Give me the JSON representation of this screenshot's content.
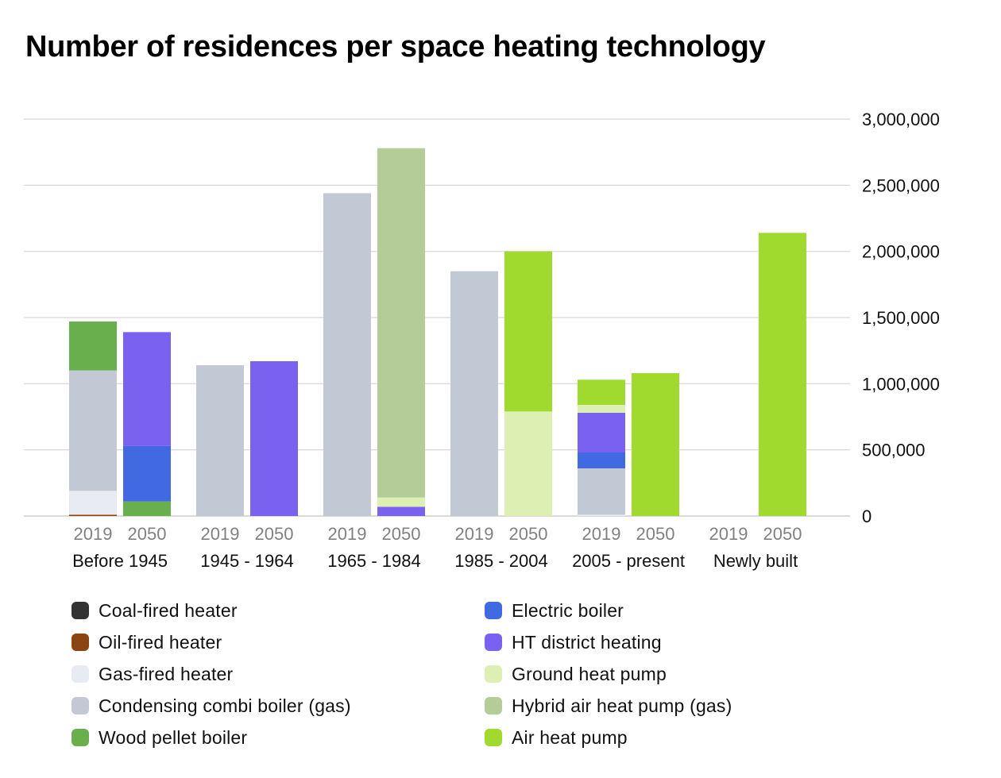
{
  "title": "Number of residences per space heating technology",
  "chart_data": {
    "type": "bar",
    "stacked": true,
    "title": "Number of residences per space heating technology",
    "groups": [
      "Before 1945",
      "1945 - 1964",
      "1965 - 1984",
      "1985 - 2004",
      "2005 - present",
      "Newly built"
    ],
    "years": [
      "2019",
      "2050"
    ],
    "ylim": [
      0,
      3000000
    ],
    "y_ticks": [
      0,
      500000,
      1000000,
      1500000,
      2000000,
      2500000,
      3000000
    ],
    "y_tick_labels": [
      "0",
      "500,000",
      "1,000,000",
      "1,500,000",
      "2,000,000",
      "2,500,000",
      "3,000,000"
    ],
    "y_axis_position": "right",
    "grid": true,
    "legend_position": "bottom",
    "series": [
      {
        "name": "Coal-fired heater",
        "color": "#333333",
        "values": [
          [
            0,
            0
          ],
          [
            0,
            0
          ],
          [
            0,
            0
          ],
          [
            0,
            0
          ],
          [
            0,
            0
          ],
          [
            0,
            0
          ]
        ]
      },
      {
        "name": "Oil-fired heater",
        "color": "#8B4513",
        "values": [
          [
            10000,
            0
          ],
          [
            0,
            0
          ],
          [
            0,
            0
          ],
          [
            0,
            0
          ],
          [
            0,
            0
          ],
          [
            0,
            0
          ]
        ]
      },
      {
        "name": "Gas-fired heater",
        "color": "#E8EBF1",
        "values": [
          [
            180000,
            0
          ],
          [
            0,
            0
          ],
          [
            0,
            0
          ],
          [
            0,
            0
          ],
          [
            10000,
            0
          ],
          [
            0,
            0
          ]
        ]
      },
      {
        "name": "Condensing combi boiler (gas)",
        "color": "#C3C9D4",
        "values": [
          [
            910000,
            0
          ],
          [
            1140000,
            0
          ],
          [
            2440000,
            0
          ],
          [
            1850000,
            0
          ],
          [
            350000,
            0
          ],
          [
            0,
            0
          ]
        ]
      },
      {
        "name": "Wood pellet boiler",
        "color": "#6AAF4E",
        "values": [
          [
            370000,
            110000
          ],
          [
            0,
            0
          ],
          [
            0,
            0
          ],
          [
            0,
            0
          ],
          [
            0,
            0
          ],
          [
            0,
            0
          ]
        ]
      },
      {
        "name": "Electric boiler",
        "color": "#4169E1",
        "values": [
          [
            0,
            420000
          ],
          [
            0,
            0
          ],
          [
            0,
            0
          ],
          [
            0,
            0
          ],
          [
            120000,
            0
          ],
          [
            0,
            0
          ]
        ]
      },
      {
        "name": "HT district heating",
        "color": "#7B61F0",
        "values": [
          [
            0,
            860000
          ],
          [
            0,
            1170000
          ],
          [
            0,
            70000
          ],
          [
            0,
            0
          ],
          [
            300000,
            0
          ],
          [
            0,
            0
          ]
        ]
      },
      {
        "name": "Ground heat pump",
        "color": "#DDEFB2",
        "values": [
          [
            0,
            0
          ],
          [
            0,
            0
          ],
          [
            0,
            70000
          ],
          [
            0,
            790000
          ],
          [
            60000,
            0
          ],
          [
            0,
            0
          ]
        ]
      },
      {
        "name": "Hybrid air heat pump (gas)",
        "color": "#B3CC98",
        "values": [
          [
            0,
            0
          ],
          [
            0,
            0
          ],
          [
            0,
            2640000
          ],
          [
            0,
            0
          ],
          [
            0,
            0
          ],
          [
            0,
            0
          ]
        ]
      },
      {
        "name": "Air heat pump",
        "color": "#A0DA2E",
        "values": [
          [
            0,
            0
          ],
          [
            0,
            0
          ],
          [
            0,
            0
          ],
          [
            0,
            1210000
          ],
          [
            190000,
            1080000
          ],
          [
            0,
            2140000
          ]
        ]
      }
    ]
  }
}
